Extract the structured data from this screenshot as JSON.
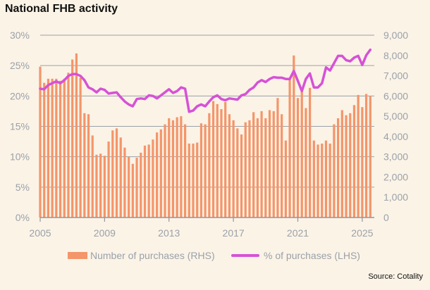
{
  "chart_data": {
    "type": "bar+line",
    "title": "National FHB activity",
    "source": "Source: Cotality",
    "x_start_year": 2005,
    "x_end_year": 2025.75,
    "x_ticks": [
      "2005",
      "2009",
      "2013",
      "2017",
      "2021",
      "2025"
    ],
    "x_tick_values": [
      2005,
      2009,
      2013,
      2017,
      2021,
      2025
    ],
    "y_left": {
      "label": "% of purchases (LHS)",
      "range": [
        0,
        30
      ],
      "ticks": [
        "0%",
        "5%",
        "10%",
        "15%",
        "20%",
        "25%",
        "30%"
      ],
      "tick_values": [
        0,
        5,
        10,
        15,
        20,
        25,
        30
      ]
    },
    "y_right": {
      "label": "Number of purchases (RHS)",
      "range": [
        0,
        9000
      ],
      "ticks": [
        "0",
        "1,000",
        "2,000",
        "3,000",
        "4,000",
        "5,000",
        "6,000",
        "7,000",
        "8,000",
        "9,000"
      ],
      "tick_values": [
        0,
        1000,
        2000,
        3000,
        4000,
        5000,
        6000,
        7000,
        8000,
        9000
      ]
    },
    "series": [
      {
        "name": "Number of purchases (RHS)",
        "type": "bar",
        "axis": "right",
        "color": "#f4956a",
        "x": [
          2005.0,
          2005.25,
          2005.5,
          2005.75,
          2006.0,
          2006.25,
          2006.5,
          2006.75,
          2007.0,
          2007.25,
          2007.5,
          2007.75,
          2008.0,
          2008.25,
          2008.5,
          2008.75,
          2009.0,
          2009.25,
          2009.5,
          2009.75,
          2010.0,
          2010.25,
          2010.5,
          2010.75,
          2011.0,
          2011.25,
          2011.5,
          2011.75,
          2012.0,
          2012.25,
          2012.5,
          2012.75,
          2013.0,
          2013.25,
          2013.5,
          2013.75,
          2014.0,
          2014.25,
          2014.5,
          2014.75,
          2015.0,
          2015.25,
          2015.5,
          2015.75,
          2016.0,
          2016.25,
          2016.5,
          2016.75,
          2017.0,
          2017.25,
          2017.5,
          2017.75,
          2018.0,
          2018.25,
          2018.5,
          2018.75,
          2019.0,
          2019.25,
          2019.5,
          2019.75,
          2020.0,
          2020.25,
          2020.5,
          2020.75,
          2021.0,
          2021.25,
          2021.5,
          2021.75,
          2022.0,
          2022.25,
          2022.5,
          2022.75,
          2023.0,
          2023.25,
          2023.5,
          2023.75,
          2024.0,
          2024.25,
          2024.5,
          2024.75,
          2025.0,
          2025.25,
          2025.5
        ],
        "values": [
          7450,
          6650,
          6850,
          6850,
          6850,
          6750,
          6850,
          7150,
          7800,
          8100,
          6900,
          5150,
          5100,
          4050,
          3100,
          3150,
          3050,
          3750,
          4300,
          4400,
          3950,
          3450,
          3000,
          2650,
          2950,
          3200,
          3550,
          3600,
          3850,
          4200,
          4350,
          4600,
          4900,
          4800,
          4950,
          5000,
          4600,
          3650,
          3650,
          3700,
          4650,
          4600,
          5150,
          5750,
          5600,
          5350,
          5700,
          5100,
          4800,
          4400,
          4100,
          4700,
          4800,
          5200,
          4900,
          5250,
          4900,
          5300,
          5250,
          5900,
          5100,
          3800,
          6900,
          8000,
          5900,
          6300,
          5400,
          6400,
          3800,
          3600,
          3650,
          3800,
          3650,
          4600,
          4900,
          5300,
          5050,
          5150,
          5550,
          6050,
          5450,
          6100,
          6000
        ]
      },
      {
        "name": "% of purchases (LHS)",
        "type": "line",
        "axis": "left",
        "color": "#d651d6",
        "x": [
          2005.0,
          2005.25,
          2005.5,
          2005.75,
          2006.0,
          2006.25,
          2006.5,
          2006.75,
          2007.0,
          2007.25,
          2007.5,
          2007.75,
          2008.0,
          2008.25,
          2008.5,
          2008.75,
          2009.0,
          2009.25,
          2009.5,
          2009.75,
          2010.0,
          2010.25,
          2010.5,
          2010.75,
          2011.0,
          2011.25,
          2011.5,
          2011.75,
          2012.0,
          2012.25,
          2012.5,
          2012.75,
          2013.0,
          2013.25,
          2013.5,
          2013.75,
          2014.0,
          2014.25,
          2014.5,
          2014.75,
          2015.0,
          2015.25,
          2015.5,
          2015.75,
          2016.0,
          2016.25,
          2016.5,
          2016.75,
          2017.0,
          2017.25,
          2017.5,
          2017.75,
          2018.0,
          2018.25,
          2018.5,
          2018.75,
          2019.0,
          2019.25,
          2019.5,
          2019.75,
          2020.0,
          2020.25,
          2020.5,
          2020.75,
          2021.0,
          2021.25,
          2021.5,
          2021.75,
          2022.0,
          2022.25,
          2022.5,
          2022.75,
          2023.0,
          2023.25,
          2023.5,
          2023.75,
          2024.0,
          2024.25,
          2024.5,
          2024.75,
          2025.0,
          2025.25,
          2025.5
        ],
        "values": [
          21.2,
          21.1,
          21.8,
          22.1,
          22.4,
          22.1,
          22.6,
          23.3,
          23.6,
          23.6,
          23.3,
          22.6,
          21.4,
          21.1,
          20.6,
          21.2,
          21.0,
          20.4,
          20.5,
          20.6,
          19.8,
          19.1,
          18.6,
          18.3,
          19.5,
          19.6,
          19.5,
          20.1,
          20.0,
          19.6,
          20.1,
          20.6,
          21.1,
          20.5,
          20.8,
          21.4,
          21.2,
          17.4,
          17.6,
          18.3,
          18.6,
          18.3,
          19.1,
          19.8,
          20.1,
          19.5,
          19.3,
          19.6,
          19.5,
          19.4,
          20.1,
          20.3,
          21.0,
          21.4,
          22.2,
          22.6,
          22.3,
          22.8,
          23.1,
          23.0,
          23.0,
          22.8,
          22.8,
          24.1,
          22.5,
          20.8,
          22.8,
          23.7,
          21.4,
          21.4,
          22.1,
          24.7,
          24.2,
          25.4,
          26.6,
          26.6,
          25.9,
          25.7,
          26.3,
          26.6,
          25.1,
          26.7,
          27.6
        ]
      }
    ]
  }
}
